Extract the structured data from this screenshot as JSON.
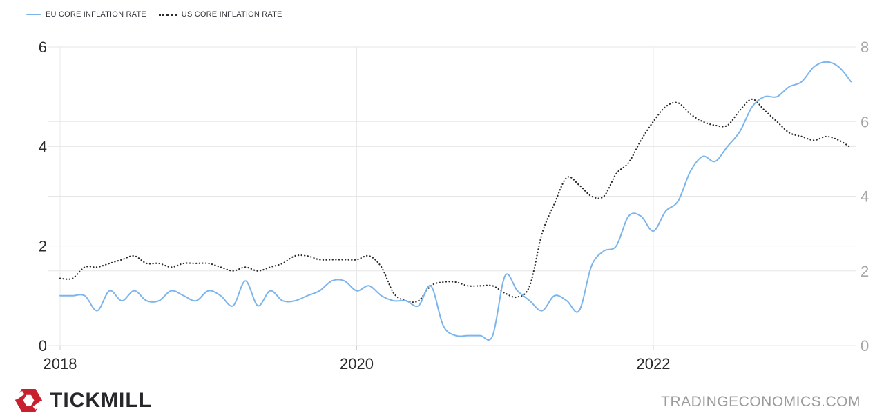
{
  "colors": {
    "background": "#ffffff",
    "grid": "#e6e6e6",
    "year_line": "#e8e8e8",
    "tick_mark": "#cfcfcf",
    "axis_text_dark": "#2b2b2b",
    "axis_text_light": "#a6a6a6",
    "eu_line": "#7cb5ec",
    "us_line": "#2b2b2b",
    "legend_text": "#33333b",
    "brand_red": "#c8202f",
    "brand_text": "#27272b",
    "watermark_text": "#9b9b9b"
  },
  "footer": {
    "brand": "TICKMILL",
    "watermark": "TRADINGECONOMICS.COM"
  },
  "chart_data": {
    "type": "line",
    "title": "",
    "x_tick_labels": [
      "2018",
      "2020",
      "2022"
    ],
    "left_axis": {
      "ticks": [
        0,
        2,
        4,
        6
      ],
      "min": 0,
      "max": 6
    },
    "right_axis": {
      "ticks": [
        0,
        2,
        4,
        6,
        8
      ],
      "min": 0,
      "max": 8
    },
    "grid": "on",
    "legend_position": "top-left",
    "series": [
      {
        "name": "EU CORE INFLATION RATE",
        "axis": "left",
        "line_style": "solid",
        "color": "#7cb5ec",
        "start": "2018-01",
        "interval": "monthly",
        "values": [
          1.0,
          1.0,
          1.0,
          0.7,
          1.1,
          0.9,
          1.1,
          0.9,
          0.9,
          1.1,
          1.0,
          0.9,
          1.1,
          1.0,
          0.8,
          1.3,
          0.8,
          1.1,
          0.9,
          0.9,
          1.0,
          1.1,
          1.3,
          1.3,
          1.1,
          1.2,
          1.0,
          0.9,
          0.9,
          0.8,
          1.2,
          0.4,
          0.2,
          0.2,
          0.2,
          0.2,
          1.4,
          1.1,
          0.9,
          0.7,
          1.0,
          0.9,
          0.7,
          1.6,
          1.9,
          2.0,
          2.6,
          2.6,
          2.3,
          2.7,
          2.9,
          3.5,
          3.8,
          3.7,
          4.0,
          4.3,
          4.8,
          5.0,
          5.0,
          5.2,
          5.3,
          5.6,
          5.7,
          5.6,
          5.3
        ]
      },
      {
        "name": "US CORE INFLATION RATE",
        "axis": "right",
        "line_style": "dotted",
        "color": "#2b2b2b",
        "start": "2018-01",
        "interval": "monthly",
        "values": [
          1.8,
          1.8,
          2.1,
          2.1,
          2.2,
          2.3,
          2.4,
          2.2,
          2.2,
          2.1,
          2.2,
          2.2,
          2.2,
          2.1,
          2.0,
          2.1,
          2.0,
          2.1,
          2.2,
          2.4,
          2.4,
          2.3,
          2.3,
          2.3,
          2.3,
          2.4,
          2.1,
          1.4,
          1.2,
          1.2,
          1.6,
          1.7,
          1.7,
          1.6,
          1.6,
          1.6,
          1.4,
          1.3,
          1.6,
          3.0,
          3.8,
          4.5,
          4.3,
          4.0,
          4.0,
          4.6,
          4.9,
          5.5,
          6.0,
          6.4,
          6.5,
          6.2,
          6.0,
          5.9,
          5.9,
          6.3,
          6.6,
          6.3,
          6.0,
          5.7,
          5.6,
          5.5,
          5.6,
          5.5,
          5.3
        ]
      }
    ]
  }
}
